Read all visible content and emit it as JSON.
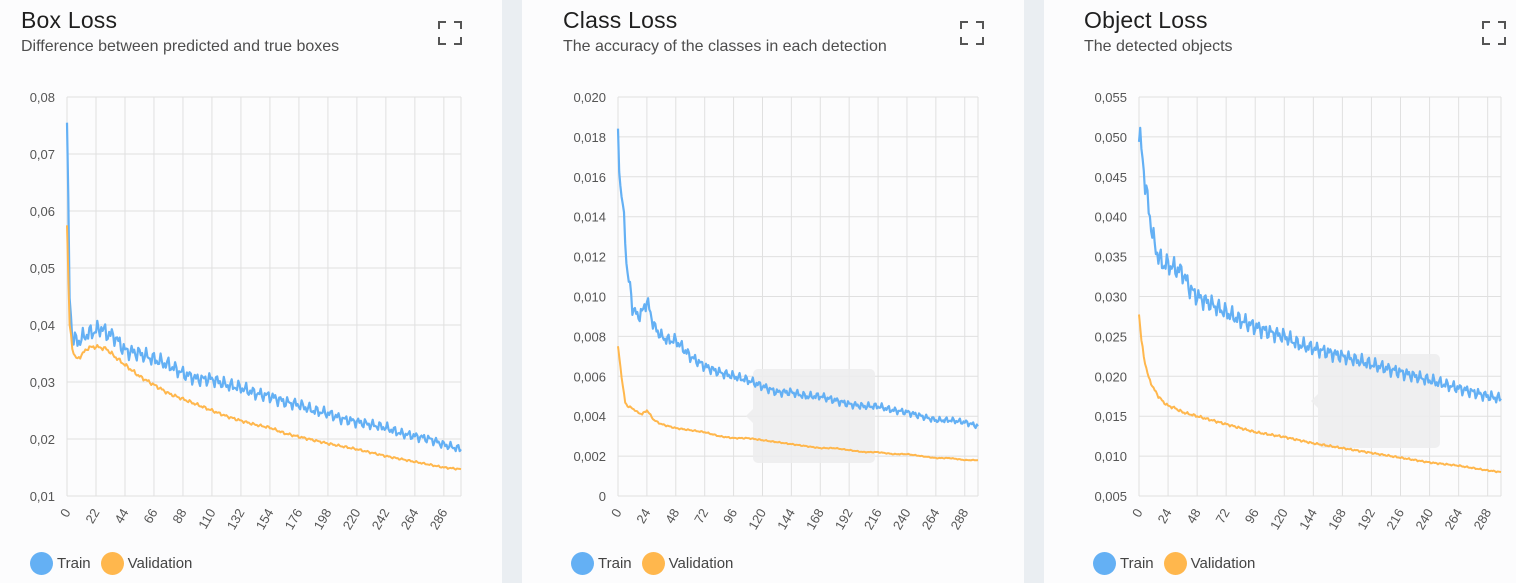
{
  "colors": {
    "train": "#64b0f4",
    "validation": "#ffb74d",
    "grid": "#e0e0e0",
    "tooltip": "#ececed"
  },
  "legend": {
    "train": "Train",
    "validation": "Validation"
  },
  "panels": [
    {
      "title": "Box Loss",
      "subtitle": "Difference between predicted and true boxes",
      "expand_icon": "fullscreen-icon"
    },
    {
      "title": "Class Loss",
      "subtitle": "The accuracy of the classes in each detection",
      "expand_icon": "fullscreen-icon"
    },
    {
      "title": "Object Loss",
      "subtitle": "The detected objects",
      "expand_icon": "fullscreen-icon"
    }
  ],
  "chart_data": [
    {
      "type": "line",
      "xlim": [
        0,
        299
      ],
      "ylim": [
        0.01,
        0.08
      ],
      "yticks": [
        "0,08",
        "0,07",
        "0,06",
        "0,05",
        "0,04",
        "0,03",
        "0,02",
        "0,01"
      ],
      "xticks": [
        "0",
        "22",
        "44",
        "66",
        "88",
        "110",
        "132",
        "154",
        "176",
        "198",
        "220",
        "242",
        "264",
        "286"
      ],
      "grid": true,
      "legend_position": "bottom-left",
      "series": [
        {
          "name": "Train",
          "x": [
            0,
            2,
            4,
            8,
            12,
            16,
            22,
            26,
            30,
            36,
            44,
            55,
            66,
            77,
            88,
            99,
            110,
            121,
            132,
            143,
            154,
            165,
            176,
            187,
            198,
            209,
            220,
            231,
            242,
            253,
            264,
            275,
            286,
            294,
            299
          ],
          "y": [
            0.0755,
            0.045,
            0.038,
            0.037,
            0.0378,
            0.0385,
            0.039,
            0.0395,
            0.0385,
            0.038,
            0.0355,
            0.035,
            0.034,
            0.033,
            0.0315,
            0.0305,
            0.0305,
            0.0295,
            0.029,
            0.028,
            0.0275,
            0.0265,
            0.026,
            0.025,
            0.0245,
            0.0235,
            0.023,
            0.0225,
            0.022,
            0.021,
            0.0205,
            0.02,
            0.019,
            0.0185,
            0.0182
          ]
        },
        {
          "name": "Validation",
          "x": [
            0,
            2,
            4,
            6,
            8,
            12,
            16,
            22,
            30,
            36,
            44,
            55,
            66,
            77,
            88,
            99,
            110,
            121,
            132,
            143,
            154,
            165,
            176,
            187,
            198,
            209,
            220,
            231,
            242,
            253,
            264,
            275,
            286,
            299
          ],
          "y": [
            0.0575,
            0.04,
            0.036,
            0.0345,
            0.034,
            0.035,
            0.036,
            0.0362,
            0.0358,
            0.0345,
            0.033,
            0.031,
            0.0295,
            0.028,
            0.027,
            0.026,
            0.025,
            0.024,
            0.0232,
            0.0225,
            0.022,
            0.021,
            0.0204,
            0.0198,
            0.0192,
            0.0187,
            0.0182,
            0.0176,
            0.017,
            0.0165,
            0.016,
            0.0155,
            0.015,
            0.0147
          ]
        }
      ]
    },
    {
      "type": "line",
      "xlim": [
        0,
        299
      ],
      "ylim": [
        0,
        0.02
      ],
      "yticks": [
        "0,020",
        "0,018",
        "0,016",
        "0,014",
        "0,012",
        "0,010",
        "0,008",
        "0,006",
        "0,004",
        "0,002",
        "0"
      ],
      "xticks": [
        "0",
        "24",
        "48",
        "72",
        "96",
        "120",
        "144",
        "168",
        "192",
        "216",
        "240",
        "264",
        "288"
      ],
      "grid": true,
      "legend_position": "bottom-left",
      "series": [
        {
          "name": "Train",
          "x": [
            0,
            2,
            4,
            6,
            8,
            10,
            12,
            16,
            20,
            24,
            30,
            36,
            42,
            48,
            60,
            72,
            84,
            96,
            108,
            120,
            132,
            144,
            156,
            168,
            180,
            192,
            204,
            216,
            228,
            240,
            252,
            264,
            276,
            288,
            299
          ],
          "y": [
            0.0183,
            0.0155,
            0.0145,
            0.013,
            0.011,
            0.0105,
            0.0095,
            0.009,
            0.0092,
            0.0098,
            0.0085,
            0.008,
            0.0078,
            0.0078,
            0.007,
            0.0065,
            0.0062,
            0.006,
            0.0058,
            0.0055,
            0.0052,
            0.0052,
            0.005,
            0.005,
            0.0048,
            0.0046,
            0.0045,
            0.0045,
            0.0043,
            0.0042,
            0.004,
            0.0038,
            0.0038,
            0.0037,
            0.0035
          ]
        },
        {
          "name": "Validation",
          "x": [
            0,
            2,
            4,
            6,
            8,
            12,
            16,
            20,
            24,
            30,
            36,
            48,
            60,
            72,
            84,
            96,
            108,
            120,
            132,
            144,
            156,
            168,
            180,
            192,
            204,
            216,
            228,
            240,
            252,
            264,
            276,
            288,
            299
          ],
          "y": [
            0.0075,
            0.0065,
            0.0055,
            0.0047,
            0.0045,
            0.0044,
            0.0042,
            0.0041,
            0.0043,
            0.0038,
            0.0036,
            0.0034,
            0.0033,
            0.0032,
            0.003,
            0.0029,
            0.0029,
            0.0028,
            0.0027,
            0.0026,
            0.0025,
            0.0024,
            0.0024,
            0.0023,
            0.0022,
            0.0022,
            0.0021,
            0.0021,
            0.002,
            0.0019,
            0.0019,
            0.0018,
            0.0018
          ]
        }
      ]
    },
    {
      "type": "line",
      "xlim": [
        0,
        299
      ],
      "ylim": [
        0.005,
        0.055
      ],
      "yticks": [
        "0,055",
        "0,050",
        "0,045",
        "0,040",
        "0,035",
        "0,030",
        "0,025",
        "0,020",
        "0,015",
        "0,010",
        "0,005"
      ],
      "xticks": [
        "0",
        "24",
        "48",
        "72",
        "96",
        "120",
        "144",
        "168",
        "192",
        "216",
        "240",
        "264",
        "288"
      ],
      "grid": true,
      "legend_position": "bottom-left",
      "series": [
        {
          "name": "Train",
          "x": [
            0,
            2,
            4,
            6,
            8,
            10,
            12,
            16,
            20,
            24,
            30,
            36,
            42,
            48,
            60,
            72,
            84,
            96,
            108,
            120,
            132,
            144,
            156,
            168,
            180,
            192,
            204,
            216,
            228,
            240,
            252,
            264,
            276,
            288,
            299
          ],
          "y": [
            0.05,
            0.0485,
            0.046,
            0.043,
            0.041,
            0.039,
            0.037,
            0.035,
            0.034,
            0.034,
            0.0335,
            0.033,
            0.031,
            0.03,
            0.029,
            0.028,
            0.027,
            0.0262,
            0.0255,
            0.025,
            0.024,
            0.0235,
            0.023,
            0.0225,
            0.022,
            0.0215,
            0.021,
            0.0205,
            0.02,
            0.0195,
            0.019,
            0.0185,
            0.018,
            0.0175,
            0.0172
          ]
        },
        {
          "name": "Validation",
          "x": [
            0,
            2,
            4,
            6,
            8,
            12,
            16,
            20,
            24,
            30,
            36,
            48,
            60,
            72,
            84,
            96,
            108,
            120,
            132,
            144,
            156,
            168,
            180,
            192,
            204,
            216,
            228,
            240,
            252,
            264,
            276,
            288,
            299
          ],
          "y": [
            0.0278,
            0.0245,
            0.0225,
            0.021,
            0.0198,
            0.0185,
            0.0175,
            0.0168,
            0.0163,
            0.016,
            0.0155,
            0.015,
            0.0145,
            0.014,
            0.0135,
            0.013,
            0.0127,
            0.0124,
            0.012,
            0.0116,
            0.0113,
            0.011,
            0.0107,
            0.0104,
            0.0101,
            0.0098,
            0.0095,
            0.0092,
            0.009,
            0.0088,
            0.0085,
            0.0082,
            0.008
          ]
        }
      ]
    }
  ]
}
